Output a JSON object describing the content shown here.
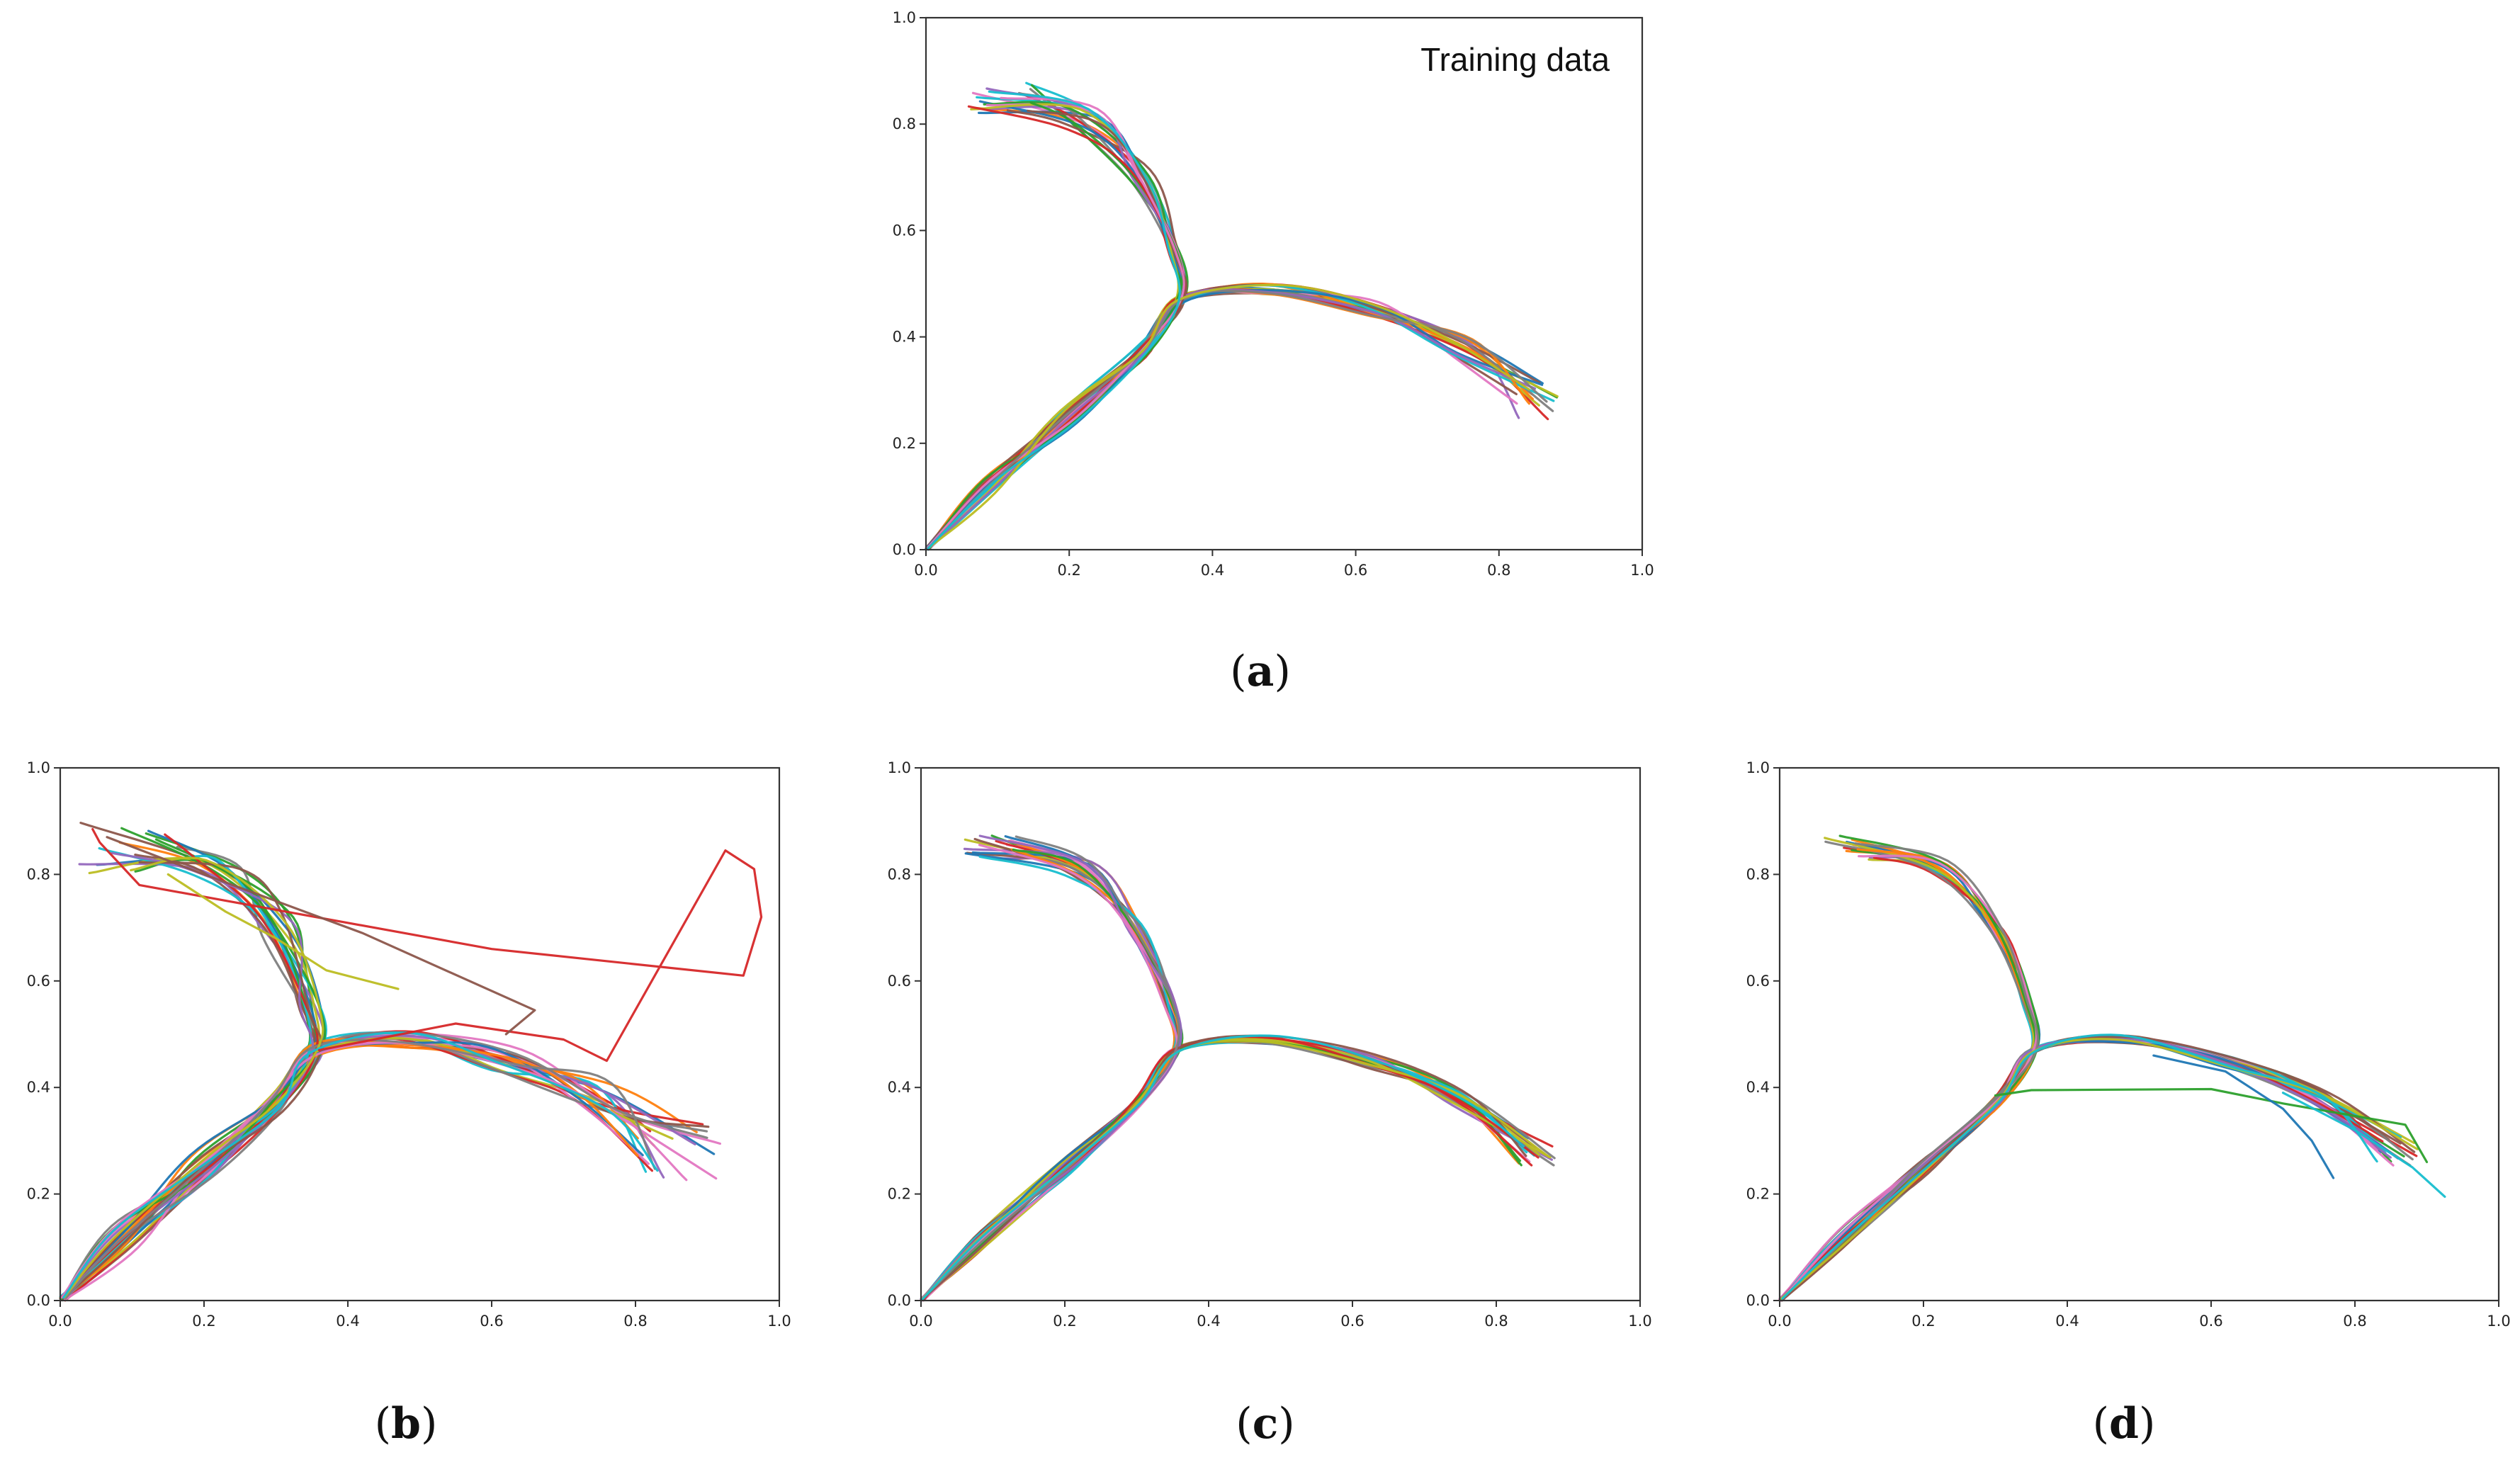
{
  "palette": [
    "#1f77b4",
    "#ff7f0e",
    "#2ca02c",
    "#d62728",
    "#9467bd",
    "#8c564b",
    "#e377c2",
    "#7f7f7f",
    "#bcbd22",
    "#17becf"
  ],
  "chart_data": [
    {
      "id": "a",
      "type": "line",
      "caption_letter": "a",
      "caption_text": "(a)",
      "annotation": "Training data",
      "xlim": [
        0.0,
        1.0
      ],
      "ylim": [
        0.0,
        1.0
      ],
      "xticks": [
        "0.0",
        "0.2",
        "0.4",
        "0.6",
        "0.8",
        "1.0"
      ],
      "yticks": [
        "0.0",
        "0.2",
        "0.4",
        "0.6",
        "0.8",
        "1.0"
      ],
      "grid": false,
      "n_trajectories": 40,
      "spread": 1.0,
      "outliers": []
    },
    {
      "id": "b",
      "type": "line",
      "caption_letter": "b",
      "caption_text": "(b)",
      "annotation": "",
      "xlim": [
        0.0,
        1.0
      ],
      "ylim": [
        0.0,
        1.0
      ],
      "xticks": [
        "0.0",
        "0.2",
        "0.4",
        "0.6",
        "0.8",
        "1.0"
      ],
      "yticks": [
        "0.0",
        "0.2",
        "0.4",
        "0.6",
        "0.8",
        "1.0"
      ],
      "grid": false,
      "n_trajectories": 40,
      "spread": 1.6,
      "outliers": [
        {
          "color": "#d62728",
          "points": [
            [
              0.045,
              0.885
            ],
            [
              0.055,
              0.86
            ],
            [
              0.11,
              0.78
            ],
            [
              0.6,
              0.66
            ],
            [
              0.95,
              0.61
            ],
            [
              0.975,
              0.72
            ],
            [
              0.965,
              0.81
            ],
            [
              0.925,
              0.845
            ],
            [
              0.76,
              0.45
            ],
            [
              0.7,
              0.49
            ],
            [
              0.55,
              0.52
            ],
            [
              0.36,
              0.47
            ]
          ]
        },
        {
          "color": "#8c564b",
          "points": [
            [
              0.065,
              0.87
            ],
            [
              0.2,
              0.8
            ],
            [
              0.42,
              0.69
            ],
            [
              0.66,
              0.545
            ],
            [
              0.62,
              0.5
            ]
          ]
        },
        {
          "color": "#bcbd22",
          "points": [
            [
              0.15,
              0.8
            ],
            [
              0.23,
              0.73
            ],
            [
              0.3,
              0.68
            ],
            [
              0.37,
              0.62
            ],
            [
              0.47,
              0.585
            ]
          ]
        }
      ]
    },
    {
      "id": "c",
      "type": "line",
      "caption_letter": "c",
      "caption_text": "(c)",
      "annotation": "",
      "xlim": [
        0.0,
        1.0
      ],
      "ylim": [
        0.0,
        1.0
      ],
      "xticks": [
        "0.0",
        "0.2",
        "0.4",
        "0.6",
        "0.8",
        "1.0"
      ],
      "yticks": [
        "0.0",
        "0.2",
        "0.4",
        "0.6",
        "0.8",
        "1.0"
      ],
      "grid": false,
      "n_trajectories": 40,
      "spread": 0.8,
      "outliers": []
    },
    {
      "id": "d",
      "type": "line",
      "caption_letter": "d",
      "caption_text": "(d)",
      "annotation": "",
      "xlim": [
        0.0,
        1.0
      ],
      "ylim": [
        0.0,
        1.0
      ],
      "xticks": [
        "0.0",
        "0.2",
        "0.4",
        "0.6",
        "0.8",
        "1.0"
      ],
      "yticks": [
        "0.0",
        "0.2",
        "0.4",
        "0.6",
        "0.8",
        "1.0"
      ],
      "grid": false,
      "n_trajectories": 40,
      "spread": 0.8,
      "outliers": [
        {
          "color": "#2ca02c",
          "points": [
            [
              0.3,
              0.385
            ],
            [
              0.35,
              0.395
            ],
            [
              0.6,
              0.397
            ],
            [
              0.7,
              0.37
            ],
            [
              0.87,
              0.33
            ],
            [
              0.9,
              0.26
            ]
          ]
        },
        {
          "color": "#1f77b4",
          "points": [
            [
              0.52,
              0.46
            ],
            [
              0.62,
              0.43
            ],
            [
              0.7,
              0.36
            ],
            [
              0.74,
              0.3
            ],
            [
              0.77,
              0.23
            ]
          ]
        },
        {
          "color": "#17becf",
          "points": [
            [
              0.7,
              0.39
            ],
            [
              0.8,
              0.32
            ],
            [
              0.88,
              0.25
            ],
            [
              0.925,
              0.195
            ]
          ]
        }
      ]
    }
  ]
}
